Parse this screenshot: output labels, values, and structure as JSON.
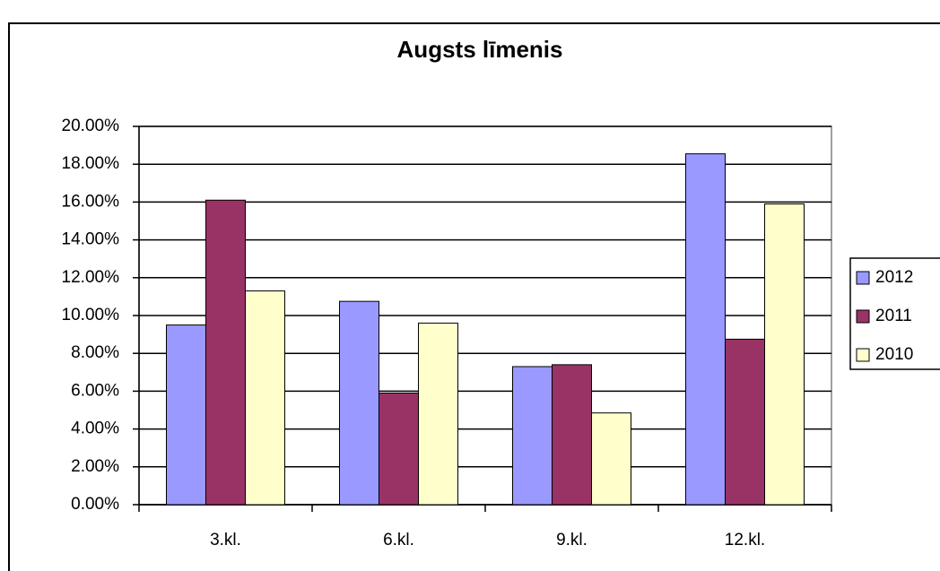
{
  "chart_data": {
    "type": "bar",
    "title": "Augsts līmenis",
    "categories": [
      "3.kl.",
      "6.kl.",
      "9.kl.",
      "12.kl."
    ],
    "series": [
      {
        "name": "2012",
        "color": "#9999ff",
        "values": [
          9.5,
          10.75,
          7.3,
          18.55
        ]
      },
      {
        "name": "2011",
        "color": "#993366",
        "values": [
          16.1,
          5.9,
          7.4,
          8.75
        ]
      },
      {
        "name": "2010",
        "color": "#ffffcc",
        "values": [
          11.3,
          9.6,
          4.85,
          15.9
        ]
      }
    ],
    "ylim": [
      0,
      20
    ],
    "yticks": [
      {
        "value": 0,
        "label": "0.00%"
      },
      {
        "value": 2,
        "label": "2.00%"
      },
      {
        "value": 4,
        "label": "4.00%"
      },
      {
        "value": 6,
        "label": "6.00%"
      },
      {
        "value": 8,
        "label": "8.00%"
      },
      {
        "value": 10,
        "label": "10.00%"
      },
      {
        "value": 12,
        "label": "12.00%"
      },
      {
        "value": 14,
        "label": "14.00%"
      },
      {
        "value": 16,
        "label": "16.00%"
      },
      {
        "value": 18,
        "label": "18.00%"
      },
      {
        "value": 20,
        "label": "20.00%"
      }
    ],
    "grid": true,
    "legend": "right"
  }
}
